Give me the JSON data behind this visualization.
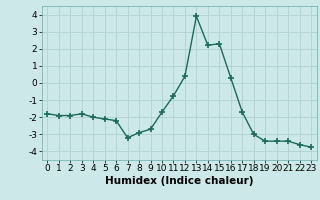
{
  "x": [
    0,
    1,
    2,
    3,
    4,
    5,
    6,
    7,
    8,
    9,
    10,
    11,
    12,
    13,
    14,
    15,
    16,
    17,
    18,
    19,
    20,
    21,
    22,
    23
  ],
  "y": [
    -1.8,
    -1.9,
    -1.9,
    -1.8,
    -2.0,
    -2.1,
    -2.2,
    -3.2,
    -2.9,
    -2.7,
    -1.7,
    -0.75,
    0.4,
    3.9,
    2.2,
    2.3,
    0.3,
    -1.7,
    -3.0,
    -3.4,
    -3.4,
    -3.4,
    -3.6,
    -3.75
  ],
  "line_color": "#1a6b5a",
  "marker": "+",
  "marker_size": 4,
  "marker_lw": 1.2,
  "xlabel": "Humidex (Indice chaleur)",
  "ylim": [
    -4.5,
    4.5
  ],
  "xlim": [
    -0.5,
    23.5
  ],
  "yticks": [
    -4,
    -3,
    -2,
    -1,
    0,
    1,
    2,
    3,
    4
  ],
  "xticks": [
    0,
    1,
    2,
    3,
    4,
    5,
    6,
    7,
    8,
    9,
    10,
    11,
    12,
    13,
    14,
    15,
    16,
    17,
    18,
    19,
    20,
    21,
    22,
    23
  ],
  "bg_color": "#cce8e8",
  "grid_color": "#b0d0d0",
  "xlabel_fontsize": 7.5,
  "tick_fontsize": 6.5,
  "linewidth": 1.0
}
